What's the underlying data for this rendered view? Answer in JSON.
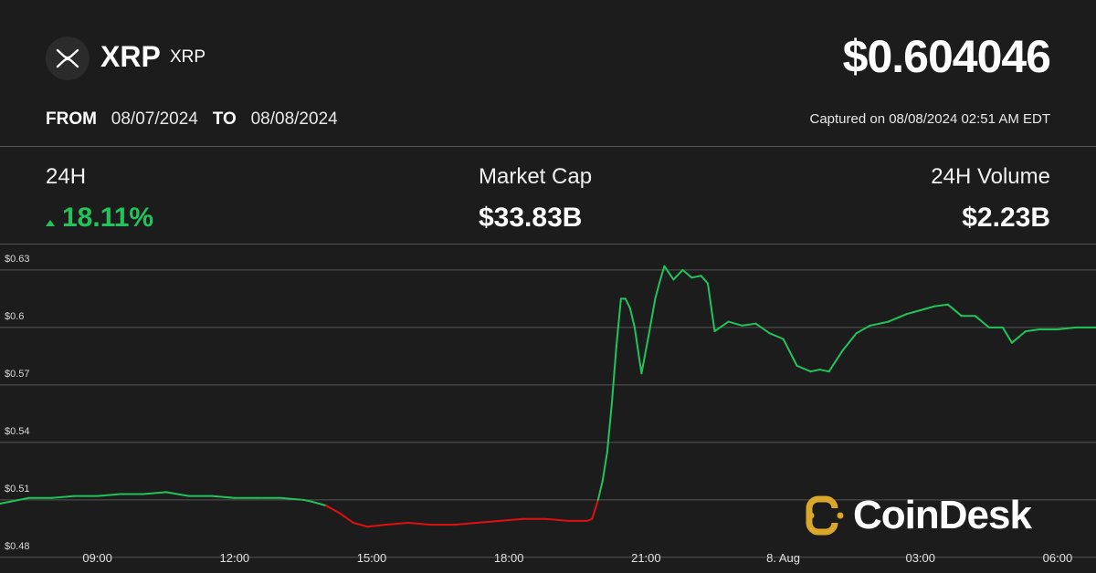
{
  "header": {
    "name": "XRP",
    "symbol": "XRP",
    "price": "$0.604046",
    "from_label": "FROM",
    "from_date": "08/07/2024",
    "to_label": "TO",
    "to_date": "08/08/2024",
    "captured": "Captured on 08/08/2024 02:51 AM EDT"
  },
  "stats": {
    "change_label": "24H",
    "change_value": "18.11%",
    "market_cap_label": "Market Cap",
    "market_cap_value": "$33.83B",
    "volume_label": "24H Volume",
    "volume_value": "$2.23B"
  },
  "brand": "CoinDesk",
  "colors": {
    "background": "#1c1c1c",
    "up": "#20c45a",
    "down": "#e01010",
    "grid": "#555555",
    "brand_accent": "#d9a72a"
  },
  "chart_data": {
    "type": "line",
    "title": "",
    "xlabel": "",
    "ylabel": "",
    "y_tick_labels": [
      "$0.63",
      "$0.6",
      "$0.57",
      "$0.54",
      "$0.51",
      "$0.48"
    ],
    "y_ticks": [
      0.63,
      0.6,
      0.57,
      0.54,
      0.51,
      0.48
    ],
    "ylim": [
      0.4718,
      0.6433
    ],
    "x_tick_labels": [
      "09:00",
      "12:00",
      "15:00",
      "18:00",
      "21:00",
      "8. Aug",
      "03:00",
      "06:00"
    ],
    "x_tick_hours": [
      9,
      12,
      15,
      18,
      21,
      24,
      27,
      30
    ],
    "xlim_hours": [
      6.87,
      30.84
    ],
    "grid": true,
    "reference_price": 0.5075,
    "series": [
      {
        "x_hours": [
          6.87,
          7.5,
          8.0,
          8.5,
          9.0,
          9.5,
          10.0,
          10.5,
          11.0,
          11.5,
          12.0,
          12.5,
          13.0,
          13.5,
          13.7,
          14.0,
          14.3,
          14.6,
          14.9,
          15.3,
          15.8,
          16.3,
          16.8,
          17.3,
          17.8,
          18.3,
          18.8,
          19.3,
          19.7,
          19.82,
          19.95,
          20.05,
          20.15,
          20.25,
          20.35,
          20.45,
          20.55,
          20.65,
          20.75,
          20.9,
          21.05,
          21.2,
          21.3,
          21.4,
          21.6,
          21.8,
          22.0,
          22.2,
          22.35,
          22.5,
          22.8,
          23.1,
          23.4,
          23.7,
          24.0,
          24.3,
          24.6,
          24.8,
          25.0,
          25.3,
          25.6,
          25.9,
          26.3,
          26.7,
          27.0,
          27.3,
          27.6,
          27.9,
          28.2,
          28.5,
          28.8,
          29.0,
          29.3,
          29.6,
          30.0,
          30.4,
          30.84
        ],
        "y": [
          0.508,
          0.511,
          0.511,
          0.512,
          0.512,
          0.513,
          0.513,
          0.514,
          0.512,
          0.512,
          0.511,
          0.511,
          0.511,
          0.51,
          0.509,
          0.507,
          0.503,
          0.498,
          0.496,
          0.497,
          0.498,
          0.497,
          0.497,
          0.498,
          0.499,
          0.5,
          0.5,
          0.499,
          0.499,
          0.5,
          0.51,
          0.52,
          0.535,
          0.56,
          0.59,
          0.615,
          0.615,
          0.61,
          0.6,
          0.576,
          0.595,
          0.615,
          0.624,
          0.632,
          0.625,
          0.63,
          0.626,
          0.627,
          0.623,
          0.598,
          0.603,
          0.601,
          0.602,
          0.597,
          0.594,
          0.58,
          0.577,
          0.578,
          0.577,
          0.588,
          0.597,
          0.601,
          0.603,
          0.607,
          0.609,
          0.611,
          0.612,
          0.606,
          0.606,
          0.6,
          0.6,
          0.592,
          0.598,
          0.599,
          0.599,
          0.6,
          0.6
        ]
      }
    ]
  }
}
